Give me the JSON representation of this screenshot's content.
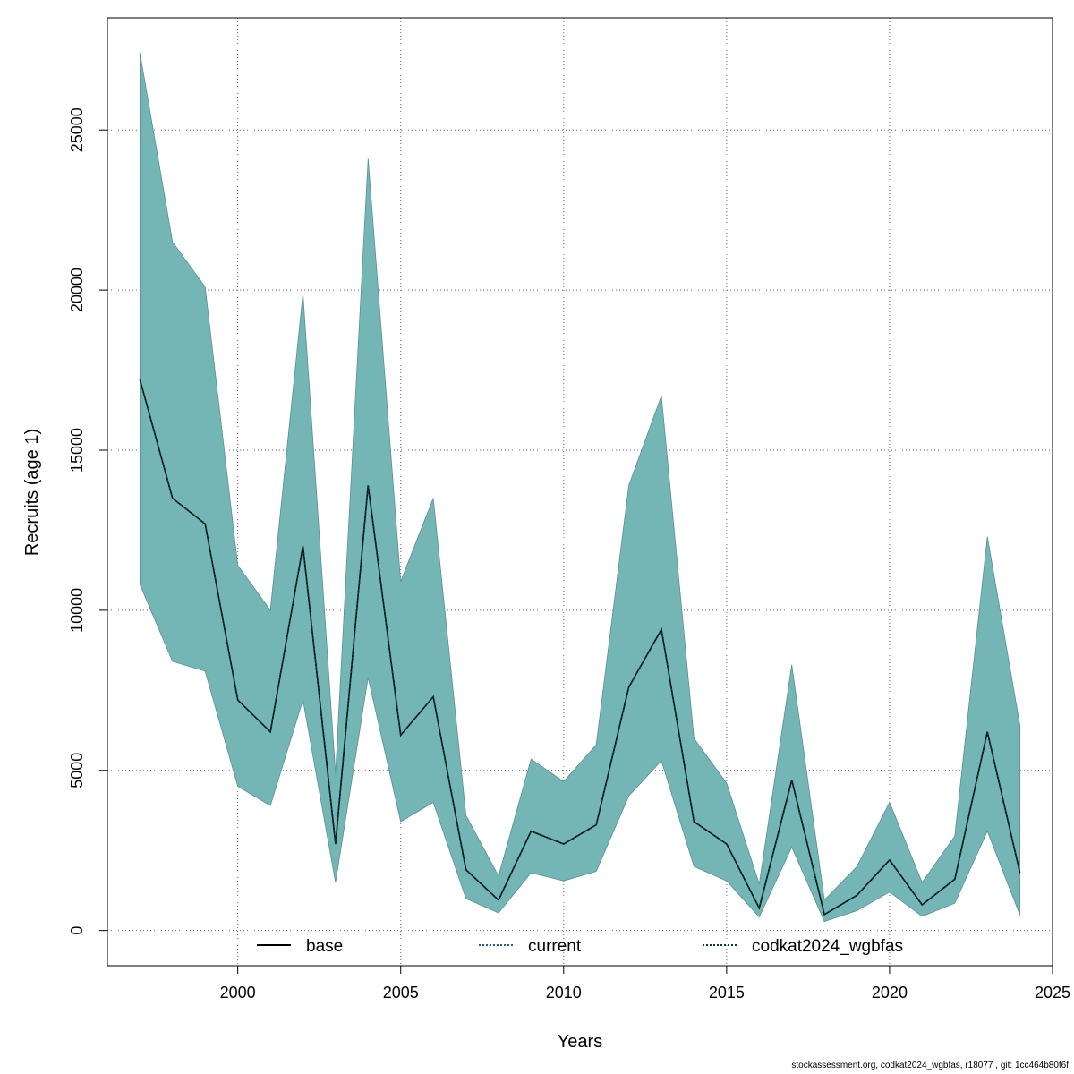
{
  "chart_data": {
    "type": "area",
    "xlabel": "Years",
    "ylabel": "Recruits (age 1)",
    "xlim": [
      1996,
      2025
    ],
    "ylim": [
      -1100,
      28500
    ],
    "xticks": [
      2000,
      2005,
      2010,
      2015,
      2020,
      2025
    ],
    "yticks": [
      0,
      5000,
      10000,
      15000,
      20000,
      25000
    ],
    "grid": true,
    "legend_position": "bottom",
    "band_color": "#74b5b6",
    "x": [
      1997,
      1998,
      1999,
      2000,
      2001,
      2002,
      2003,
      2004,
      2005,
      2006,
      2007,
      2008,
      2009,
      2010,
      2011,
      2012,
      2013,
      2014,
      2015,
      2016,
      2017,
      2018,
      2019,
      2020,
      2021,
      2022,
      2023,
      2024
    ],
    "series": [
      {
        "name": "base",
        "line_style": "solid",
        "color": "#000000",
        "values": [
          17200,
          13500,
          12700,
          7200,
          6200,
          12000,
          2700,
          13900,
          6100,
          7300,
          1900,
          950,
          3100,
          2700,
          3300,
          7600,
          9400,
          3400,
          2700,
          700,
          4700,
          500,
          1100,
          2200,
          800,
          1600,
          6200,
          1800
        ]
      },
      {
        "name": "current",
        "line_style": "dotted",
        "color": "#1f5f8b",
        "values": [
          17200,
          13500,
          12700,
          7200,
          6200,
          12000,
          2700,
          13900,
          6100,
          7300,
          1900,
          950,
          3100,
          2700,
          3300,
          7600,
          9400,
          3400,
          2700,
          700,
          4700,
          500,
          1100,
          2200,
          800,
          1600,
          6200,
          1800
        ]
      },
      {
        "name": "codkat2024_wgbfas",
        "line_style": "dotted",
        "color": "#0a3a35",
        "values": [
          17200,
          13500,
          12700,
          7200,
          6200,
          12000,
          2700,
          13900,
          6100,
          7300,
          1900,
          950,
          3100,
          2700,
          3300,
          7600,
          9400,
          3400,
          2700,
          700,
          4700,
          500,
          1100,
          2200,
          800,
          1600,
          6200,
          1800
        ],
        "lower": [
          10800,
          8400,
          8100,
          4500,
          3900,
          7200,
          1500,
          7900,
          3400,
          4000,
          1000,
          550,
          1800,
          1550,
          1850,
          4200,
          5300,
          2000,
          1550,
          420,
          2600,
          280,
          620,
          1200,
          440,
          850,
          3100,
          480
        ],
        "upper": [
          27400,
          21500,
          20100,
          11400,
          10000,
          19900,
          4900,
          24100,
          10900,
          13500,
          3600,
          1700,
          5350,
          4650,
          5800,
          13900,
          16700,
          6000,
          4600,
          1450,
          8300,
          950,
          2000,
          4000,
          1500,
          2950,
          12300,
          6400
        ]
      }
    ]
  },
  "footer": "stockassessment.org, codkat2024_wgbfas, r18077 , git: 1cc464b80f6f"
}
